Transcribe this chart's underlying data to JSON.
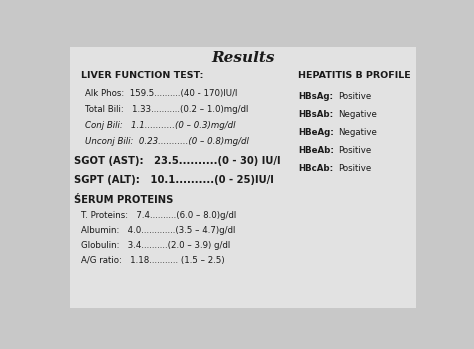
{
  "title": "Results",
  "bg_color": "#c8c8c8",
  "paper_color": "#e2e2e2",
  "left_section_header": "LIVER FUNCTION TEST:",
  "left_lines": [
    {
      "text": "Alk Phos:  159.5..........(40 - 170)IU/l",
      "italic": false,
      "bold": false
    },
    {
      "text": "Total Bili:   1.33...........(0.2 – 1.0)mg/dl",
      "italic": false,
      "bold": false
    },
    {
      "text": "Conj Bili:   1.1...........(0 – 0.3)mg/dl",
      "italic": true,
      "bold": false
    },
    {
      "text": "Unconj Bili:  0.23...........(0 – 0.8)mg/dl",
      "italic": true,
      "bold": false
    }
  ],
  "sgot_line": "SGOT (AST):   23.5..........(0 - 30) IU/l",
  "sgpt_line": "SGPT (ALT):   10.1..........(0 - 25)IU/l",
  "serum_header": "ŚERUM PROTEINS",
  "serum_lines": [
    "T. Proteins:   7.4..........(6.0 – 8.0)g/dl",
    "Albumin:   4.0.............(3.5 – 4.7)g/dl",
    "Globulin:   3.4..........(2.0 – 3.9) g/dl",
    "A/G ratio:   1.18........... (1.5 – 2.5)"
  ],
  "right_header": "HEPATITIS B PROFILE",
  "right_lines": [
    [
      "HBsAg:",
      "Positive"
    ],
    [
      "HBsAb:",
      "Negative"
    ],
    [
      "HBeAg:",
      "Negative"
    ],
    [
      "HBeAb:",
      "Positive"
    ],
    [
      "HBcAb:",
      "Positive"
    ]
  ],
  "text_color": "#1a1a1a",
  "title_fontsize": 11,
  "header_fontsize": 6.8,
  "body_fontsize": 6.2,
  "bold_fontsize": 7.2
}
